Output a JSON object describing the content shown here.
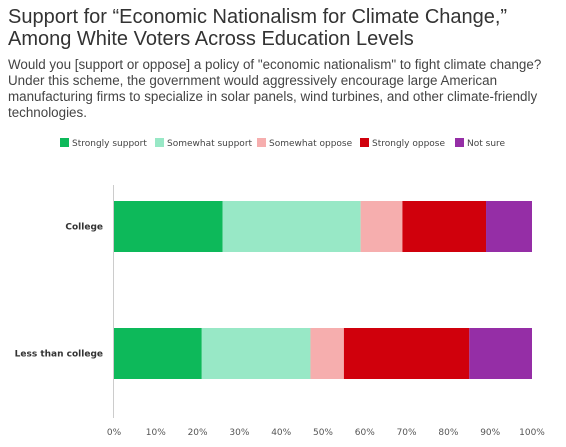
{
  "title": "Support for “Economic Nationalism for Climate Change,” Among White Voters Across Education Levels",
  "subtitle": "Would you [support or oppose] a policy of \"economic nationalism\" to fight climate change? Under this scheme, the government would aggressively encourage large American manufacturing firms to specialize in solar panels, wind turbines, and other climate-friendly technologies.",
  "chart_data": {
    "type": "bar",
    "orientation": "horizontal",
    "stacked": true,
    "categories": [
      "College",
      "Less than college"
    ],
    "series": [
      {
        "name": "Strongly support",
        "color": "#0db95a",
        "values": [
          26,
          21
        ]
      },
      {
        "name": "Somewhat support",
        "color": "#98e8c6",
        "values": [
          33,
          26
        ]
      },
      {
        "name": "Somewhat oppose",
        "color": "#f6aeae",
        "values": [
          10,
          8
        ]
      },
      {
        "name": "Strongly oppose",
        "color": "#d0000c",
        "values": [
          20,
          30
        ]
      },
      {
        "name": "Not sure",
        "color": "#952ea6",
        "values": [
          11,
          15
        ]
      }
    ],
    "xlim": [
      0,
      100
    ],
    "xticks": [
      "0%",
      "10%",
      "20%",
      "30%",
      "40%",
      "50%",
      "60%",
      "70%",
      "80%",
      "90%",
      "100%"
    ],
    "legend_position": "top",
    "grid": false
  }
}
